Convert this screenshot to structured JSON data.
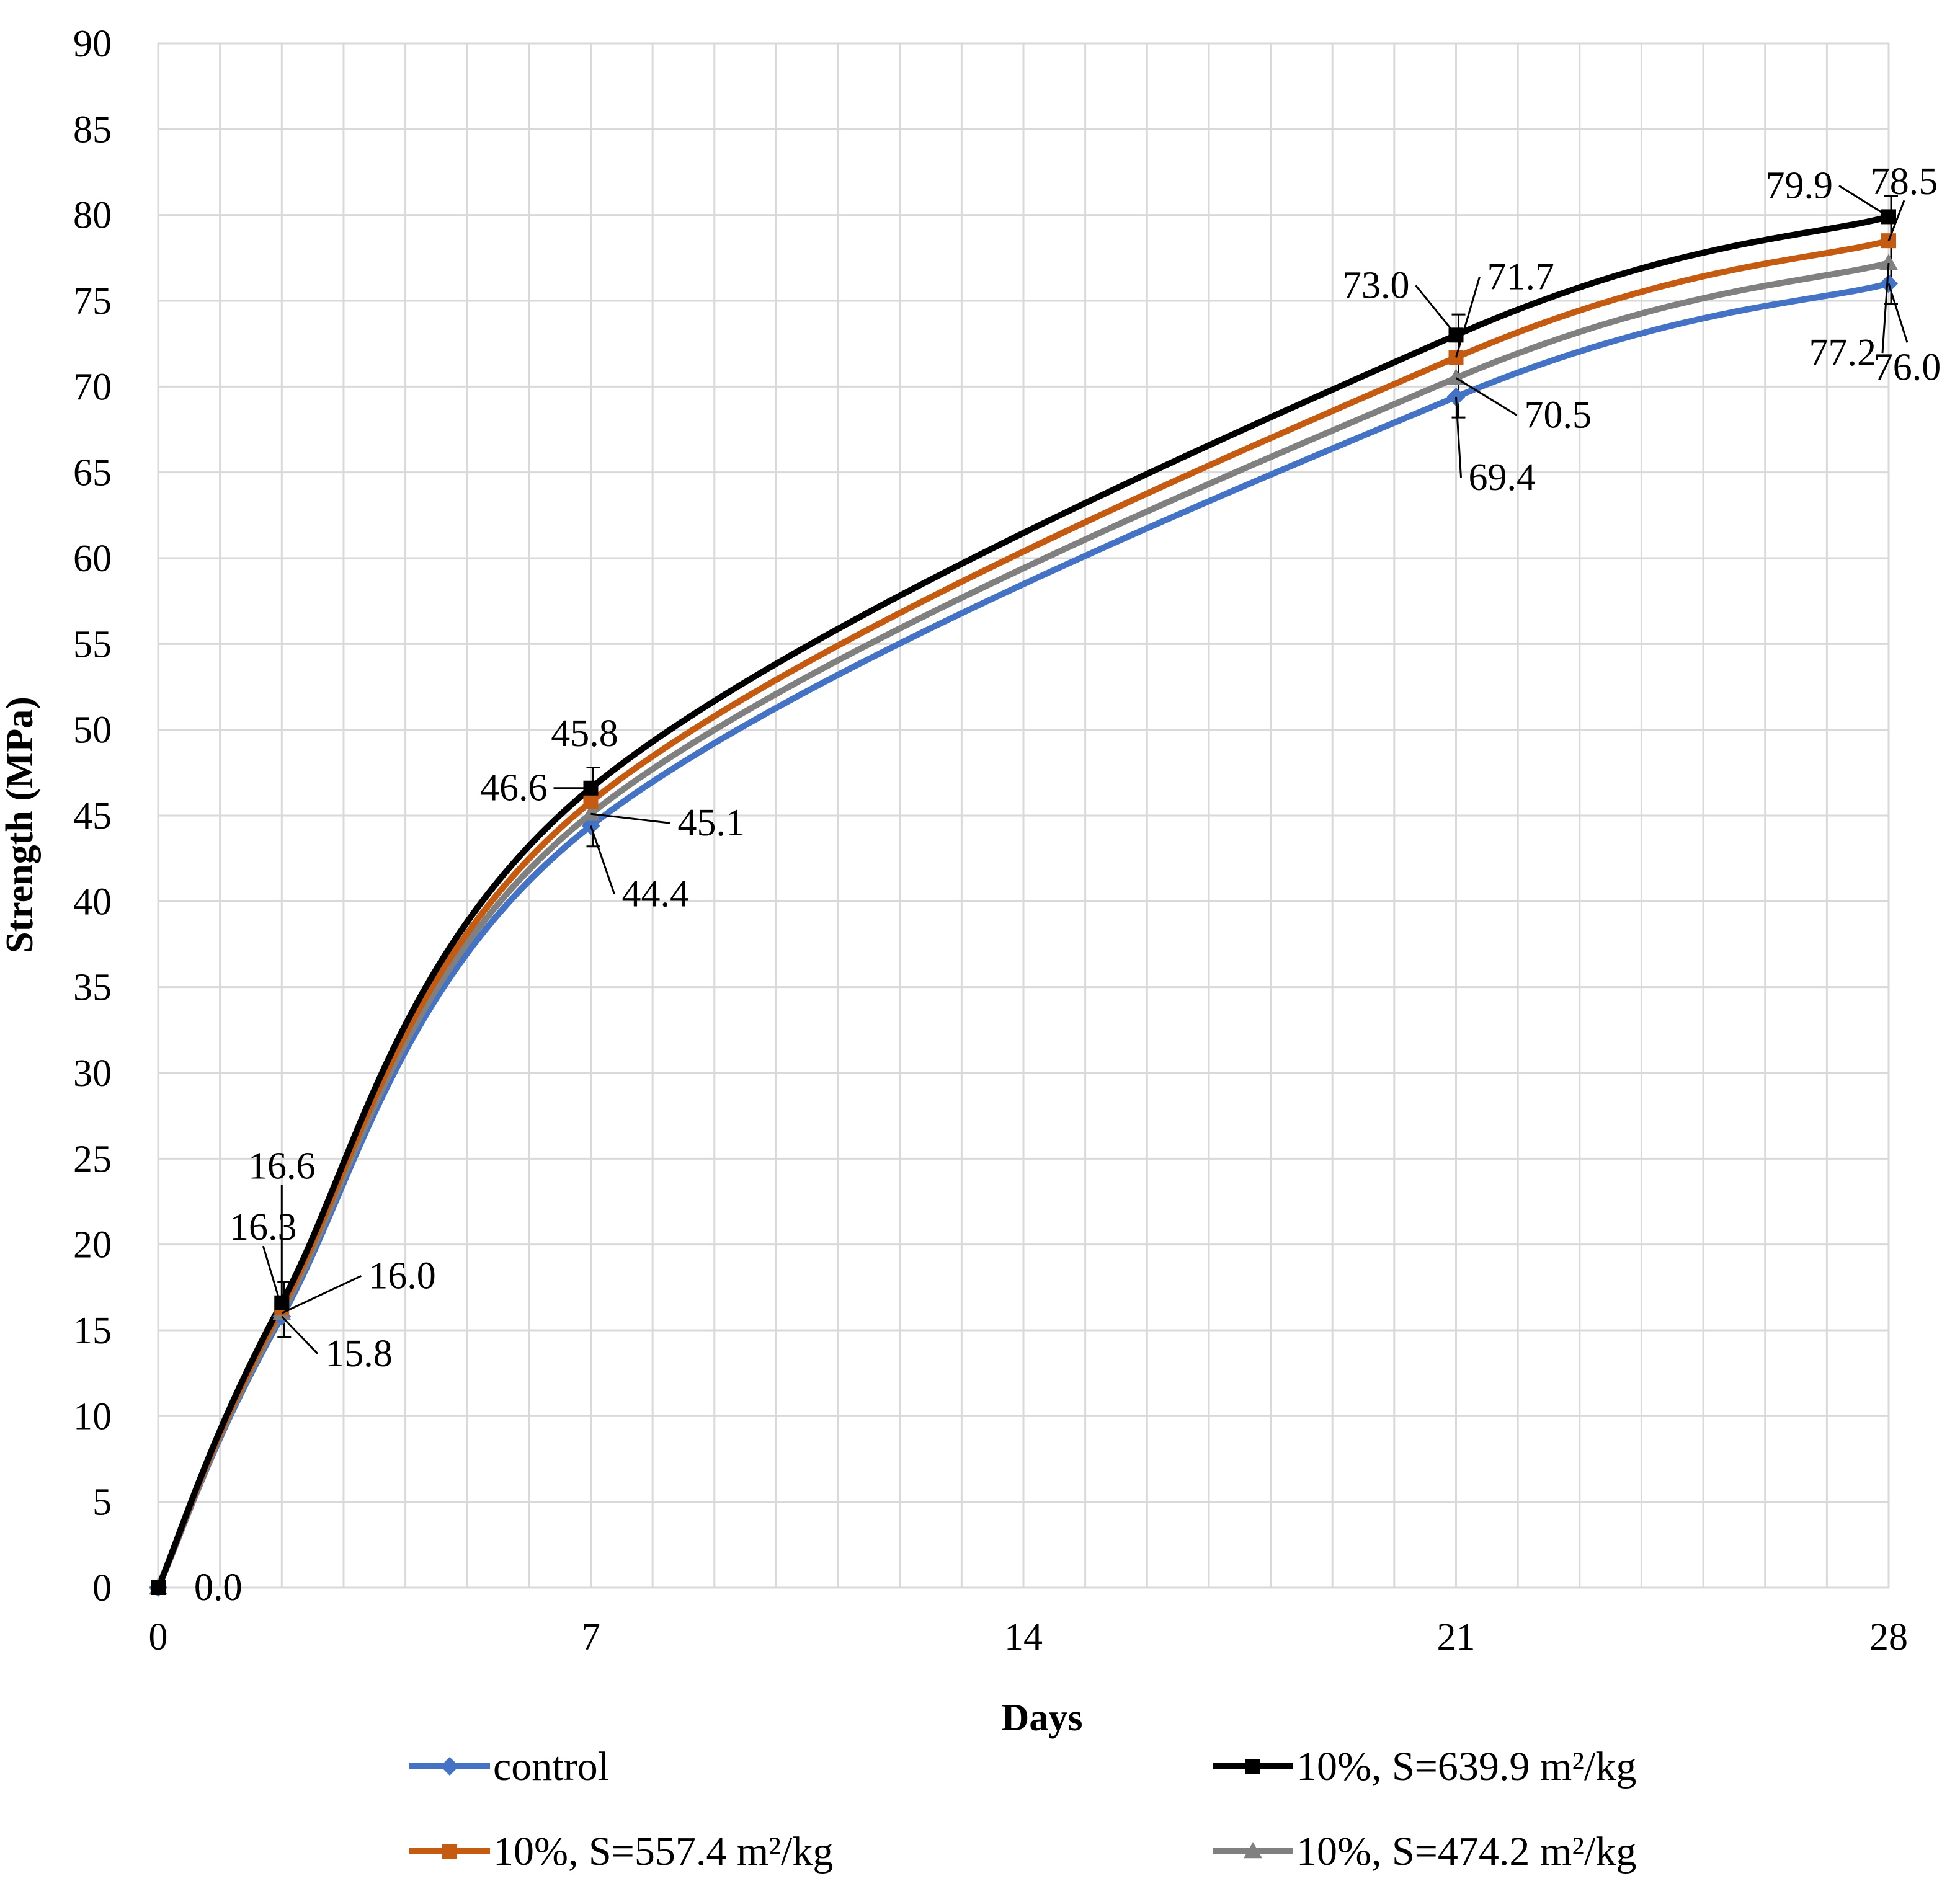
{
  "chart_data": {
    "type": "line",
    "title": "",
    "xlabel": "Days",
    "ylabel": "Strength (MPa)",
    "xlim": [
      0,
      28
    ],
    "ylim": [
      0,
      90
    ],
    "x_ticks": [
      "0",
      "7",
      "14",
      "21",
      "28"
    ],
    "y_ticks": [
      "0",
      "5",
      "10",
      "15",
      "20",
      "25",
      "30",
      "35",
      "40",
      "45",
      "50",
      "55",
      "60",
      "65",
      "70",
      "75",
      "80",
      "85",
      "90"
    ],
    "grid": true,
    "legend_position": "bottom",
    "x": [
      0,
      2,
      7,
      21,
      28
    ],
    "series": [
      {
        "name": "control",
        "color": "#4472C4",
        "marker": "diamond",
        "values": [
          0,
          15.8,
          44.4,
          69.4,
          76.0
        ],
        "labels": [
          "0.0",
          "15.8",
          "44.4",
          "69.4",
          "76.0"
        ]
      },
      {
        "name": "10%, S=639.9 m²/kg",
        "color": "#000000",
        "marker": "square",
        "values": [
          0,
          16.6,
          46.6,
          73.0,
          79.9
        ],
        "labels": [
          "0.0",
          "16.6",
          "46.6",
          "73.0",
          "79.9"
        ]
      },
      {
        "name": "10%, S=557.4 m²/kg",
        "color": "#C55A11",
        "marker": "square",
        "values": [
          0,
          16.3,
          45.8,
          71.7,
          78.5
        ],
        "labels": [
          "0.0",
          "16.3",
          "45.8",
          "71.7",
          "78.5"
        ]
      },
      {
        "name": "10%, S=474.2 m²/kg",
        "color": "#808080",
        "marker": "triangle",
        "values": [
          0,
          16.0,
          45.1,
          70.5,
          77.2
        ],
        "labels": [
          "0.0",
          "16.0",
          "45.1",
          "70.5",
          "77.2"
        ]
      }
    ]
  }
}
